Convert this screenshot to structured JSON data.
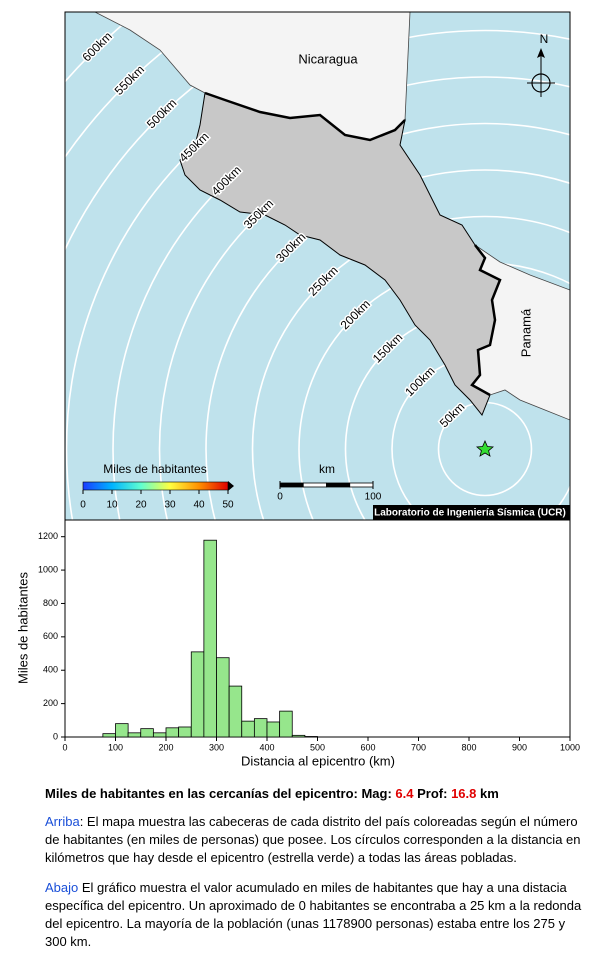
{
  "map": {
    "country_labels": [
      "Nicaragua",
      "Panamá"
    ],
    "north_label": "N",
    "ring_ticks": [
      {
        "value": 50,
        "label": "50km"
      },
      {
        "value": 100,
        "label": "100km"
      },
      {
        "value": 150,
        "label": "150km"
      },
      {
        "value": 200,
        "label": "200km"
      },
      {
        "value": 250,
        "label": "250km"
      },
      {
        "value": 300,
        "label": "300km"
      },
      {
        "value": 350,
        "label": "350km"
      },
      {
        "value": 400,
        "label": "400km"
      },
      {
        "value": 450,
        "label": "450km"
      },
      {
        "value": 500,
        "label": "500km"
      },
      {
        "value": 550,
        "label": "550km"
      },
      {
        "value": 600,
        "label": "600km"
      }
    ],
    "colorbar": {
      "title": "Miles de habitantes",
      "ticks": [
        0,
        10,
        20,
        30,
        40,
        50
      ],
      "colors": [
        "#1a3cff",
        "#00b4ff",
        "#60ffd0",
        "#ffff40",
        "#ff9000",
        "#e00000"
      ]
    },
    "scale_bar": {
      "label": "km",
      "ticks": [
        0,
        100
      ]
    },
    "credit": "Laboratorio de Ingeniería Sísmica (UCR)"
  },
  "chart_data": {
    "type": "histogram",
    "bins": [
      75,
      100,
      125,
      150,
      175,
      200,
      225,
      250,
      275,
      300,
      325,
      350,
      375,
      400,
      425,
      450,
      475,
      500
    ],
    "values": [
      20,
      80,
      25,
      50,
      25,
      55,
      60,
      510,
      1179,
      475,
      305,
      95,
      110,
      90,
      155,
      10,
      3
    ],
    "color": "#96e68c",
    "xlim": [
      0,
      1000
    ],
    "xticks": [
      0,
      100,
      200,
      300,
      400,
      500,
      600,
      700,
      800,
      900,
      1000
    ],
    "ylim": [
      0,
      1300
    ],
    "yticks": [
      0,
      200,
      400,
      600,
      800,
      1000,
      1200
    ],
    "x_label": "Distancia al epicentro (km)",
    "y_label": "Miles de habitantes"
  },
  "summary": {
    "heading": "Miles de habitantes en las cercanías del epicentro: Mag:",
    "mag": 6.4,
    "prof_label": "Prof:",
    "prof": 16.8,
    "unit": "km"
  },
  "paragraphs": [
    {
      "lead": "Arriba",
      "text": ": El mapa muestra las cabeceras de cada distrito del país coloreadas según el número de habitantes (en miles de personas) que posee.  Los círculos corresponden a la distancia en kilómetros que hay desde el epicentro (estrella verde) a todas las áreas pobladas."
    },
    {
      "lead": "Abajo",
      "text": " El gráfico muestra el valor acumulado en miles de habitantes que hay a una distacia específica del epicentro.  Un aproximado de 0 habitantes se encontraba a 25 km a la redonda del epicentro.  La mayoría de la población (unas 1178900 personas) estaba entre los 275 y 300 km."
    }
  ]
}
